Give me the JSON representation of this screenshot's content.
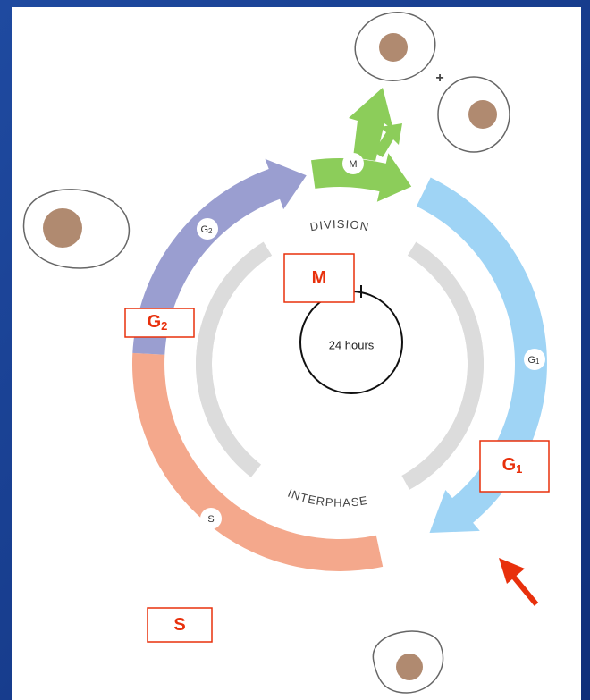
{
  "cycle": {
    "division": "DIVISION",
    "interphase": "INTERPHASE",
    "duration": "24 hours",
    "plus": "+",
    "phases": [
      {
        "letter": "M"
      },
      {
        "letter": "G",
        "sub": "2"
      },
      {
        "letter": "G",
        "sub": "1"
      },
      {
        "letter": "S"
      }
    ]
  },
  "boxes": [
    {
      "letter": "M"
    },
    {
      "letter": "G",
      "sub": "2"
    },
    {
      "letter": "G",
      "sub": "1"
    },
    {
      "letter": "S"
    }
  ]
}
